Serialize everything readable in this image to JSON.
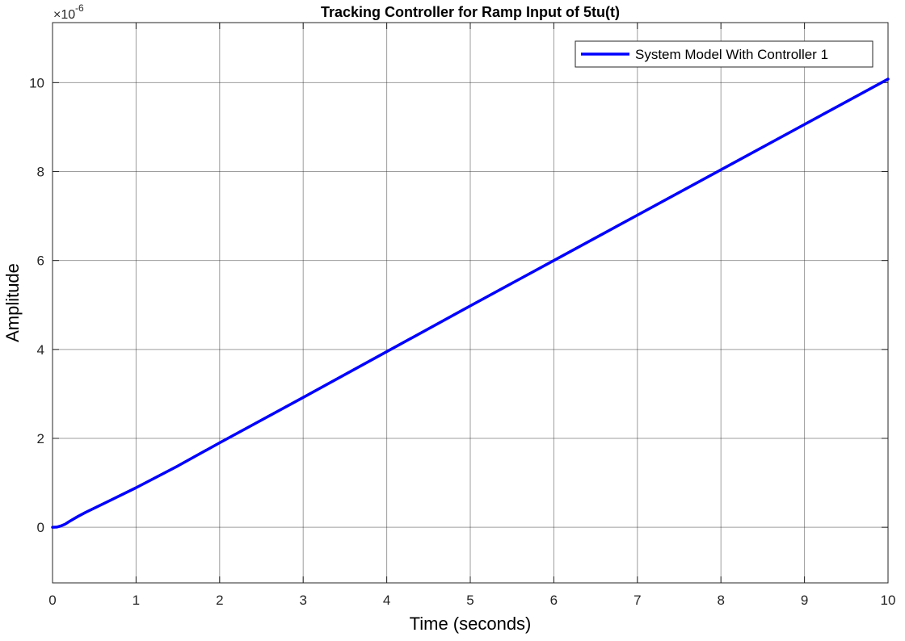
{
  "chart_data": {
    "type": "line",
    "title": "Tracking Controller for Ramp Input of 5tu(t)",
    "xlabel": "Time (seconds)",
    "ylabel": "Amplitude",
    "xlim": [
      0,
      10
    ],
    "ylim": [
      -1.25,
      11.35
    ],
    "y_exponent_base": "×10",
    "y_exponent_power": "-6",
    "xticks": [
      "0",
      "1",
      "2",
      "3",
      "4",
      "5",
      "6",
      "7",
      "8",
      "9",
      "10"
    ],
    "yticks": [
      "0",
      "2",
      "4",
      "6",
      "8",
      "10"
    ],
    "grid": true,
    "legend_position": "top-right",
    "series": [
      {
        "name": "System Model With Controller 1",
        "color": "#0000ff",
        "x": [
          0,
          0.05,
          0.1,
          0.15,
          0.2,
          0.3,
          0.4,
          0.5,
          0.75,
          1,
          1.5,
          2,
          3,
          4,
          5,
          6,
          7,
          8,
          9,
          10
        ],
        "y": [
          0,
          0.005,
          0.03,
          0.07,
          0.13,
          0.24,
          0.34,
          0.43,
          0.66,
          0.89,
          1.38,
          1.9,
          2.92,
          3.95,
          4.98,
          6.0,
          7.02,
          8.04,
          9.06,
          10.08
        ]
      }
    ]
  }
}
